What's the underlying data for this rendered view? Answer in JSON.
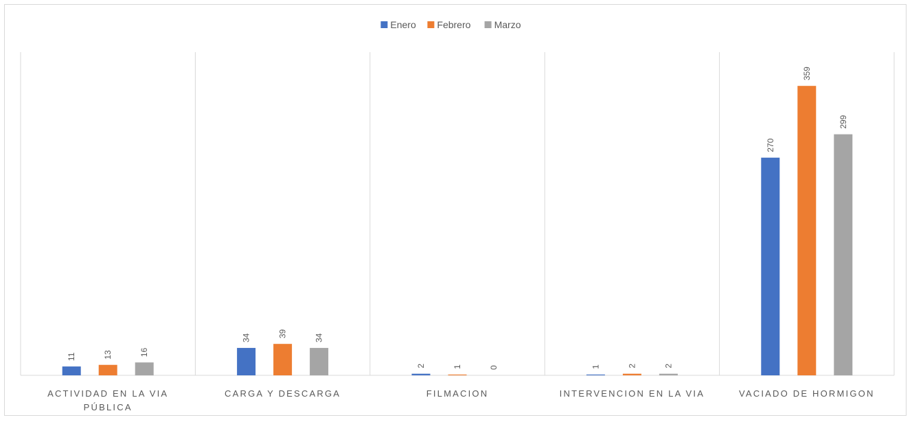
{
  "chart_data": {
    "type": "bar",
    "categories": [
      [
        "ACTIVIDAD EN LA VIA",
        "PÚBLICA"
      ],
      [
        "CARGA Y DESCARGA"
      ],
      [
        "FILMACION"
      ],
      [
        "INTERVENCION EN LA VIA"
      ],
      [
        "VACIADO DE HORMIGON"
      ]
    ],
    "series": [
      {
        "name": "Enero",
        "color": "#4472C4",
        "values": [
          11,
          34,
          2,
          1,
          270
        ]
      },
      {
        "name": "Febrero",
        "color": "#ED7D31",
        "values": [
          13,
          39,
          1,
          2,
          359
        ]
      },
      {
        "name": "Marzo",
        "color": "#A5A5A5",
        "values": [
          16,
          34,
          0,
          2,
          299
        ]
      }
    ],
    "ylim": [
      0,
      360
    ],
    "legend": "top-center",
    "grid": "vertical category separators"
  }
}
